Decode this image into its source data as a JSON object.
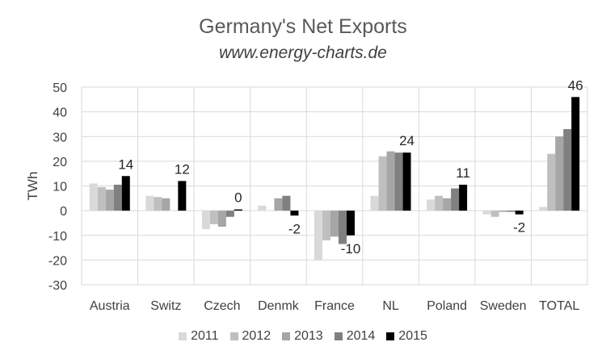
{
  "chart_data": {
    "type": "bar",
    "title": "Germany's Net Exports",
    "subtitle": "www.energy-charts.de",
    "ylabel": "TWh",
    "xlabel": "",
    "ylim": [
      -30,
      50
    ],
    "yticks": [
      50,
      40,
      30,
      20,
      10,
      0,
      -10,
      -20,
      -30
    ],
    "grid": true,
    "legend_position": "bottom",
    "categories": [
      "Austria",
      "Switz",
      "Czech",
      "Denmk",
      "France",
      "NL",
      "Poland",
      "Sweden",
      "TOTAL"
    ],
    "series": [
      {
        "name": "2011",
        "color": "#d9d9d9",
        "values": [
          11,
          6,
          -7.5,
          2,
          -20,
          6,
          4.5,
          -1.5,
          1.5
        ]
      },
      {
        "name": "2012",
        "color": "#bfbfbf",
        "values": [
          9.5,
          5.5,
          -5.5,
          0,
          -12,
          22,
          6,
          -2.5,
          23
        ]
      },
      {
        "name": "2013",
        "color": "#a6a6a6",
        "values": [
          8.5,
          5,
          -6.5,
          5,
          -10.5,
          24,
          5,
          -0.5,
          30
        ]
      },
      {
        "name": "2014",
        "color": "#808080",
        "values": [
          10.5,
          0,
          -2.5,
          6,
          -13.5,
          23.5,
          9,
          -0.5,
          33
        ]
      },
      {
        "name": "2015",
        "color": "#000000",
        "values": [
          14,
          12,
          0.5,
          -2,
          -10,
          23.5,
          10.5,
          -1.5,
          46
        ]
      }
    ],
    "data_labels": [
      {
        "category": "Austria",
        "text": "14"
      },
      {
        "category": "Switz",
        "text": "12"
      },
      {
        "category": "Czech",
        "text": "0"
      },
      {
        "category": "Denmk",
        "text": "-2"
      },
      {
        "category": "France",
        "text": "-10"
      },
      {
        "category": "NL",
        "text": "24"
      },
      {
        "category": "Poland",
        "text": "11"
      },
      {
        "category": "Sweden",
        "text": "-2"
      },
      {
        "category": "TOTAL",
        "text": "46"
      }
    ]
  }
}
